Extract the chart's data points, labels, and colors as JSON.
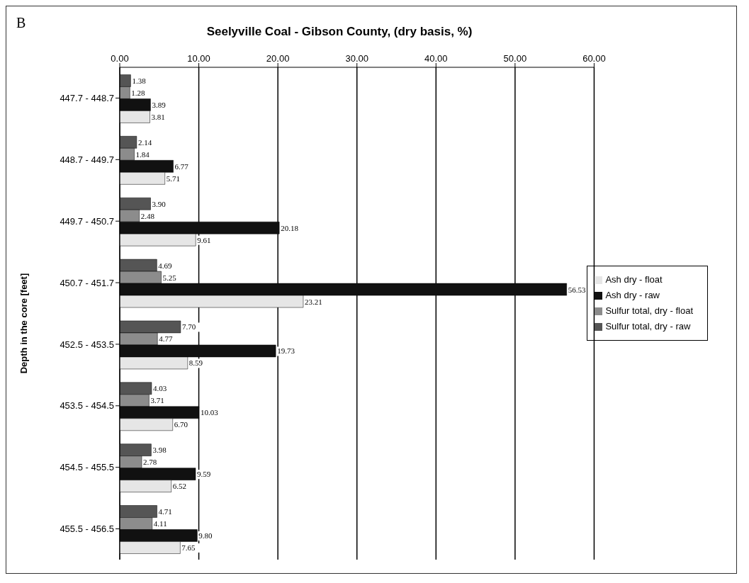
{
  "chart_data": {
    "type": "bar",
    "orientation": "horizontal",
    "title": "Seelyville Coal - Gibson County, (dry basis, %)",
    "ylabel": "Depth in the core [feet]",
    "annotations": [
      "B"
    ],
    "categories": [
      "447.7 - 448.7",
      "448.7 - 449.7",
      "449.7 - 450.7",
      "450.7 - 451.7",
      "452.5 - 453.5",
      "453.5 - 454.5",
      "454.5 - 455.5",
      "455.5 - 456.5"
    ],
    "series": [
      {
        "name": "Sulfur total, dry - raw",
        "color": "#555555",
        "values": [
          1.38,
          2.14,
          3.9,
          4.69,
          7.7,
          4.03,
          3.98,
          4.71
        ],
        "value_labels": [
          "1.38",
          "2.14",
          "3.90",
          "4.69",
          "7.70",
          "4.03",
          "3.98",
          "4.71"
        ]
      },
      {
        "name": "Sulfur total, dry - float",
        "color": "#8c8c8c",
        "values": [
          1.28,
          1.84,
          2.48,
          5.25,
          4.77,
          3.71,
          2.78,
          4.11
        ],
        "value_labels": [
          "1.28",
          "1.84",
          "2.48",
          "5.25",
          "4.77",
          "3.71",
          "2.78",
          "4.11"
        ]
      },
      {
        "name": "Ash dry - raw",
        "color": "#111111",
        "values": [
          3.89,
          6.77,
          20.18,
          56.53,
          19.73,
          10.03,
          9.59,
          9.8
        ],
        "value_labels": [
          "3.89",
          "6.77",
          "20.18",
          "56.53",
          "19.73",
          "10.03",
          "9.59",
          "9.80"
        ]
      },
      {
        "name": "Ash dry - float",
        "color": "#e6e6e6",
        "values": [
          3.81,
          5.71,
          9.61,
          23.21,
          8.59,
          6.7,
          6.52,
          7.65
        ],
        "value_labels": [
          "3.81",
          "5.71",
          "9.61",
          "23.21",
          "8.59",
          "6.70",
          "6.52",
          "7.65"
        ]
      }
    ],
    "xlim": [
      0,
      60
    ],
    "xticks": [
      {
        "value": 0,
        "label": "0.00"
      },
      {
        "value": 10,
        "label": "10.00"
      },
      {
        "value": 20,
        "label": "20.00"
      },
      {
        "value": 30,
        "label": "30.00"
      },
      {
        "value": 40,
        "label": "40.00"
      },
      {
        "value": 50,
        "label": "50.00"
      },
      {
        "value": 60,
        "label": "60.00"
      }
    ],
    "grid": "x",
    "legend": "right"
  }
}
